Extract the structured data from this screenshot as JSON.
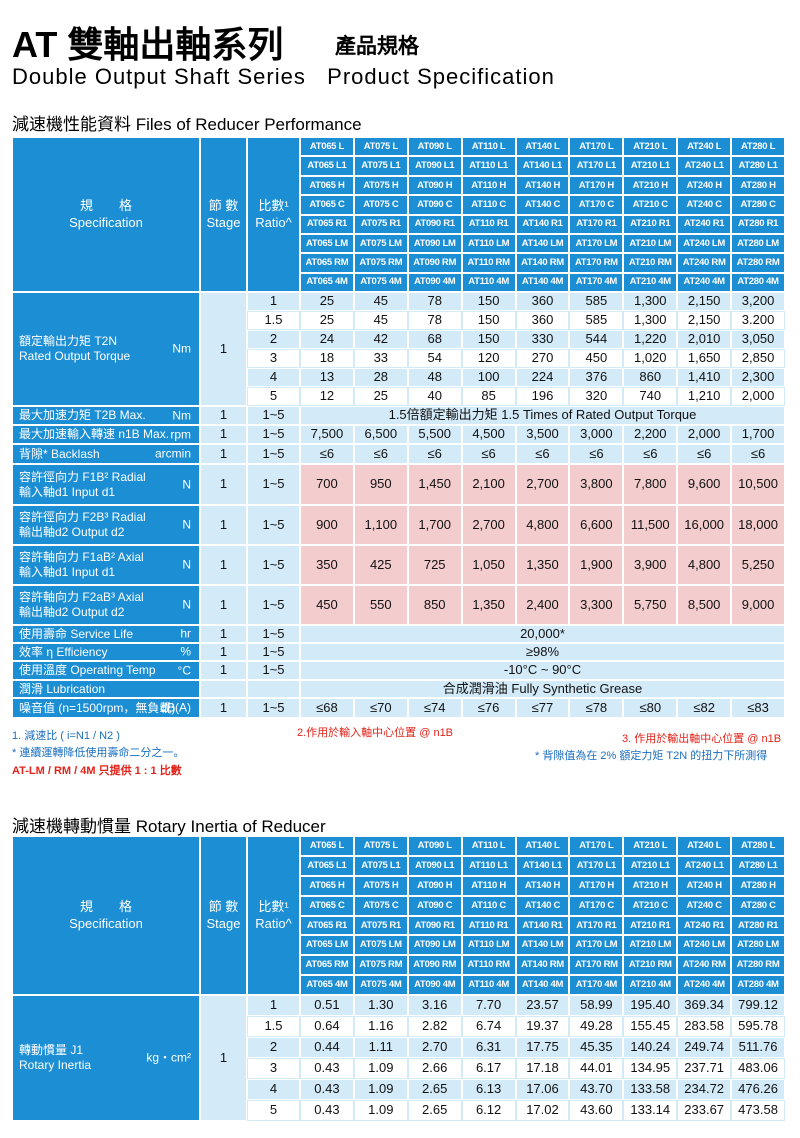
{
  "header": {
    "title_cn": "AT 雙軸出軸系列",
    "subtitle_cn": "產品規格",
    "title_en": "Double Output Shaft Series   Product Specification"
  },
  "performance": {
    "title": "減速機性能資料 Files of Reducer Performance",
    "col_headers": {
      "spec_cn": "規　　格",
      "spec_en": "Specification",
      "stage_cn": "節 數",
      "stage_en": "Stage",
      "ratio_cn": "比數¹",
      "ratio_en": "Ratio^"
    },
    "models": [
      [
        "AT065 L",
        "AT065 L1",
        "AT065 H",
        "AT065 C",
        "AT065 R1",
        "AT065 LM",
        "AT065 RM",
        "AT065 4M"
      ],
      [
        "AT075 L",
        "AT075 L1",
        "AT075 H",
        "AT075 C",
        "AT075 R1",
        "AT075 LM",
        "AT075 RM",
        "AT075 4M"
      ],
      [
        "AT090 L",
        "AT090 L1",
        "AT090 H",
        "AT090 C",
        "AT090 R1",
        "AT090 LM",
        "AT090 RM",
        "AT090 4M"
      ],
      [
        "AT110 L",
        "AT110 L1",
        "AT110 H",
        "AT110 C",
        "AT110 R1",
        "AT110 LM",
        "AT110 RM",
        "AT110 4M"
      ],
      [
        "AT140 L",
        "AT140 L1",
        "AT140 H",
        "AT140 C",
        "AT140 R1",
        "AT140 LM",
        "AT140 RM",
        "AT140 4M"
      ],
      [
        "AT170 L",
        "AT170 L1",
        "AT170 H",
        "AT170 C",
        "AT170 R1",
        "AT170 LM",
        "AT170 RM",
        "AT170 4M"
      ],
      [
        "AT210 L",
        "AT210 L1",
        "AT210 H",
        "AT210 C",
        "AT210 R1",
        "AT210 LM",
        "AT210 RM",
        "AT210 4M"
      ],
      [
        "AT240 L",
        "AT240 L1",
        "AT240 H",
        "AT240 C",
        "AT240 R1",
        "AT240 LM",
        "AT240 RM",
        "AT240 4M"
      ],
      [
        "AT280 L",
        "AT280 L1",
        "AT280 H",
        "AT280 C",
        "AT280 R1",
        "AT280 LM",
        "AT280 RM",
        "AT280 4M"
      ]
    ],
    "rated_torque": {
      "label_cn": "額定輸出力矩 T2N",
      "label_en": "Rated Output Torque",
      "unit": "Nm",
      "stage": "1",
      "ratios": [
        "1",
        "1.5",
        "2",
        "3",
        "4",
        "5"
      ],
      "values": [
        [
          "25",
          "45",
          "78",
          "150",
          "360",
          "585",
          "1,300",
          "2,150",
          "3,200"
        ],
        [
          "25",
          "45",
          "78",
          "150",
          "360",
          "585",
          "1,300",
          "2,150",
          "3.200"
        ],
        [
          "24",
          "42",
          "68",
          "150",
          "330",
          "544",
          "1,220",
          "2,010",
          "3,050"
        ],
        [
          "18",
          "33",
          "54",
          "120",
          "270",
          "450",
          "1,020",
          "1,650",
          "2,850"
        ],
        [
          "13",
          "28",
          "48",
          "100",
          "224",
          "376",
          "860",
          "1,410",
          "2,300"
        ],
        [
          "12",
          "25",
          "40",
          "85",
          "196",
          "320",
          "740",
          "1,210",
          "2,000"
        ]
      ]
    },
    "rows": [
      {
        "label": [
          "最大加速力矩 T2B Max."
        ],
        "unit": "Nm",
        "stage": "1",
        "ratio": "1~5",
        "merged": "1.5倍額定輸出力矩 1.5 Times of Rated Output Torque"
      },
      {
        "label": [
          "最大加速輸入轉速 n1B Max."
        ],
        "unit": "rpm",
        "stage": "1",
        "ratio": "1~5",
        "values": [
          "7,500",
          "6,500",
          "5,500",
          "4,500",
          "3,500",
          "3,000",
          "2,200",
          "2,000",
          "1,700"
        ]
      },
      {
        "label": [
          "背隙* Backlash"
        ],
        "unit": "arcmin",
        "stage": "1",
        "ratio": "1~5",
        "values": [
          "≤6",
          "≤6",
          "≤6",
          "≤6",
          "≤6",
          "≤6",
          "≤6",
          "≤6",
          "≤6"
        ]
      },
      {
        "label": [
          "容許徑向力 F1B² Radial",
          "輸入軸d1 Input d1"
        ],
        "unit": "N",
        "stage": "1",
        "ratio": "1~5",
        "values": [
          "700",
          "950",
          "1,450",
          "2,100",
          "2,700",
          "3,800",
          "7,800",
          "9,600",
          "10,500"
        ]
      },
      {
        "label": [
          "容許徑向力 F2B³ Radial",
          "輸出軸d2 Output d2"
        ],
        "unit": "N",
        "stage": "1",
        "ratio": "1~5",
        "values": [
          "900",
          "1,100",
          "1,700",
          "2,700",
          "4,800",
          "6,600",
          "11,500",
          "16,000",
          "18,000"
        ]
      },
      {
        "label": [
          "容許軸向力 F1aB² Axial",
          "輸入軸d1 Input d1"
        ],
        "unit": "N",
        "stage": "1",
        "ratio": "1~5",
        "values": [
          "350",
          "425",
          "725",
          "1,050",
          "1,350",
          "1,900",
          "3,900",
          "4,800",
          "5,250"
        ]
      },
      {
        "label": [
          "容許軸向力 F2aB³ Axial",
          "輸出軸d2 Output d2"
        ],
        "unit": "N",
        "stage": "1",
        "ratio": "1~5",
        "values": [
          "450",
          "550",
          "850",
          "1,350",
          "2,400",
          "3,300",
          "5,750",
          "8,500",
          "9,000"
        ]
      },
      {
        "label": [
          "使用壽命 Service Life"
        ],
        "unit": "hr",
        "stage": "1",
        "ratio": "1~5",
        "merged": "20,000*"
      },
      {
        "label": [
          "效率 η Efficiency"
        ],
        "unit": "%",
        "stage": "1",
        "ratio": "1~5",
        "merged": "≥98%"
      },
      {
        "label": [
          "使用溫度 Operating Temp"
        ],
        "unit": "°C",
        "stage": "1",
        "ratio": "1~5",
        "merged": "-10°C ~ 90°C"
      },
      {
        "label": [
          "潤滑 Lubrication"
        ],
        "merged": "合成潤滑油 Fully Synthetic Grease"
      },
      {
        "label": [
          "噪音值 (n=1500rpm，無負載)"
        ],
        "unit": "dB(A)",
        "stage": "1",
        "ratio": "1~5",
        "values": [
          "≤68",
          "≤70",
          "≤74",
          "≤76",
          "≤77",
          "≤78",
          "≤80",
          "≤82",
          "≤83"
        ]
      }
    ],
    "notes": {
      "n1": "1. 減速比 ( i=N1 / N2 )",
      "n2": "2.作用於輸入軸中心位置 @ n1B",
      "n3": "3. 作用於輸出軸中心位置 @ n1B",
      "life": "* 連續運轉降低使用壽命二分之一。",
      "backlash": "* 背隙值為在 2% 額定力矩 T2N 的扭力下所測得",
      "ratio_only": "AT-LM / RM / 4M 只提供 1 : 1 比數"
    }
  },
  "inertia": {
    "title": "減速機轉動慣量 Rotary Inertia of Reducer",
    "col_headers": {
      "spec_cn": "規　　格",
      "spec_en": "Specification",
      "stage_cn": "節 數",
      "stage_en": "Stage",
      "ratio_cn": "比數¹",
      "ratio_en": "Ratio^"
    },
    "models": [
      [
        "AT065 L",
        "AT065 L1",
        "AT065 H",
        "AT065 C",
        "AT065 R1",
        "AT065 LM",
        "AT065 RM",
        "AT065 4M"
      ],
      [
        "AT075 L",
        "AT075 L1",
        "AT075 H",
        "AT075 C",
        "AT075 R1",
        "AT075 LM",
        "AT075 RM",
        "AT075 4M"
      ],
      [
        "AT090 L",
        "AT090 L1",
        "AT090 H",
        "AT090 C",
        "AT090 R1",
        "AT090 LM",
        "AT090 RM",
        "AT090 4M"
      ],
      [
        "AT110 L",
        "AT110 L1",
        "AT110 H",
        "AT110 C",
        "AT110 R1",
        "AT110 LM",
        "AT110 RM",
        "AT110 4M"
      ],
      [
        "AT140 L",
        "AT140 L1",
        "AT140 H",
        "AT140 C",
        "AT140 R1",
        "AT140 LM",
        "AT140 RM",
        "AT140 4M"
      ],
      [
        "AT170 L",
        "AT170 L1",
        "AT170 H",
        "AT170 C",
        "AT170 R1",
        "AT170 LM",
        "AT170 RM",
        "AT170 4M"
      ],
      [
        "AT210 L",
        "AT210 L1",
        "AT210 H",
        "AT210 C",
        "AT210 R1",
        "AT210 LM",
        "AT210 RM",
        "AT210 4M"
      ],
      [
        "AT240 L",
        "AT240 L1",
        "AT240 H",
        "AT240 C",
        "AT240 R1",
        "AT240 LM",
        "AT240 RM",
        "AT240 4M"
      ],
      [
        "AT280 L",
        "AT280 L1",
        "AT280 H",
        "AT280 C",
        "AT280 R1",
        "AT280 LM",
        "AT280 RM",
        "AT280 4M"
      ]
    ],
    "group": {
      "label_cn": "轉動慣量 J1",
      "label_en": "Rotary Inertia",
      "unit": "kg・cm²",
      "stage": "1",
      "ratios": [
        "1",
        "1.5",
        "2",
        "3",
        "4",
        "5"
      ],
      "values": [
        [
          "0.51",
          "1.30",
          "3.16",
          "7.70",
          "23.57",
          "58.99",
          "195.40",
          "369.34",
          "799.12"
        ],
        [
          "0.64",
          "1.16",
          "2.82",
          "6.74",
          "19.37",
          "49.28",
          "155.45",
          "283.58",
          "595.78"
        ],
        [
          "0.44",
          "1.11",
          "2.70",
          "6.31",
          "17.75",
          "45.35",
          "140.24",
          "249.74",
          "511.76"
        ],
        [
          "0.43",
          "1.09",
          "2.66",
          "6.17",
          "17.18",
          "44.01",
          "134.95",
          "237.71",
          "483.06"
        ],
        [
          "0.43",
          "1.09",
          "2.65",
          "6.13",
          "17.06",
          "43.70",
          "133.58",
          "234.72",
          "476.26"
        ],
        [
          "0.43",
          "1.09",
          "2.65",
          "6.12",
          "17.02",
          "43.60",
          "133.14",
          "233.67",
          "473.58"
        ]
      ]
    }
  }
}
